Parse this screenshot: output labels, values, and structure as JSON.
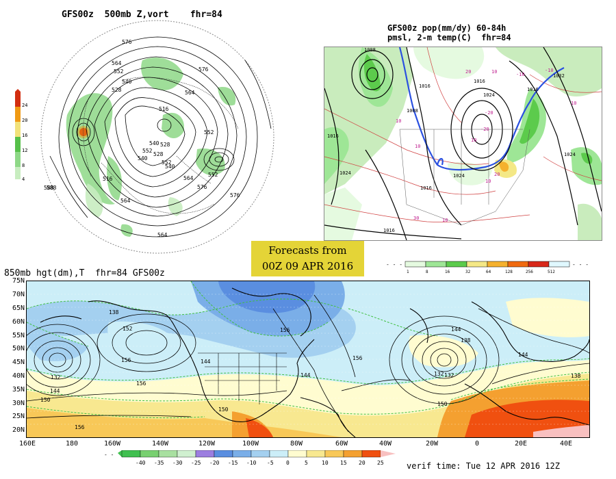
{
  "polar_panel": {
    "title": "GFS00z  500mb Z,vort    fhr=84",
    "contour_labels": [
      "576",
      "564",
      "552",
      "540",
      "528",
      "516",
      "540",
      "588",
      "576",
      "564",
      "552",
      "540",
      "528",
      "552",
      "564",
      "576",
      "588",
      "564",
      "576",
      "540",
      "528",
      "516",
      "552",
      "564",
      "552"
    ],
    "colorbar": {
      "labels": [
        "24",
        "20",
        "16",
        "12",
        "8",
        "4"
      ],
      "colors": [
        "#d22e10",
        "#f09a14",
        "#f2e27a",
        "#56c04a",
        "#8ed887",
        "#c8edc0"
      ]
    }
  },
  "us_panel": {
    "title_line1": "GFS00z pop(mm/dy) 60-84h",
    "title_line2": "pmsl, 2-m temp(C)  fhr=84",
    "isobar_labels": [
      "1008",
      "1016",
      "1024",
      "1016",
      "1008",
      "1016",
      "1024",
      "1032",
      "1024",
      "1016",
      "1024",
      "1016",
      "1016"
    ],
    "temp_labels": [
      "10",
      "20",
      "10",
      "-10",
      "-20",
      "10",
      "10",
      "10",
      "10",
      "30",
      "20",
      "-10",
      "-20",
      "10"
    ],
    "colorbar": {
      "labels": [
        "1",
        "8",
        "16",
        "32",
        "64",
        "128",
        "256",
        "512"
      ],
      "colors": [
        "#e5fae0",
        "#9ee696",
        "#5ccb4c",
        "#f4e886",
        "#f5b12e",
        "#f06a10",
        "#d8281a",
        "#e0f8ff"
      ]
    }
  },
  "stamp": {
    "line1": "Forecasts from",
    "line2": "00Z 09 APR 2016"
  },
  "main_panel": {
    "title": "850mb hgt(dm),T  fhr=84 GFS00z",
    "lat_labels": [
      "75N",
      "70N",
      "65N",
      "60N",
      "55N",
      "50N",
      "45N",
      "40N",
      "35N",
      "30N",
      "25N",
      "20N"
    ],
    "lon_labels": [
      "160E",
      "180",
      "160W",
      "140W",
      "120W",
      "100W",
      "80W",
      "60W",
      "40W",
      "20W",
      "0",
      "20E",
      "40E"
    ],
    "height_labels": [
      "132",
      "132",
      "144",
      "150",
      "156",
      "152",
      "138",
      "156",
      "156",
      "144",
      "150",
      "144",
      "156",
      "138",
      "144",
      "132",
      "150",
      "144",
      "156",
      "138"
    ],
    "colorbar": {
      "labels": [
        "-40",
        "-35",
        "-30",
        "-25",
        "-20",
        "-15",
        "-10",
        "-5",
        "0",
        "5",
        "10",
        "15",
        "20",
        "25"
      ],
      "colors": [
        "#40c050",
        "#78d070",
        "#a8e0a0",
        "#d0f0d0",
        "#9c7ee0",
        "#5a8ee0",
        "#7aaee8",
        "#a4d0f0",
        "#cceef8",
        "#fffcd0",
        "#f8e890",
        "#f8c858",
        "#f4a030",
        "#f05010"
      ]
    }
  },
  "verif": "verif time: Tue 12 APR 2016 12Z"
}
